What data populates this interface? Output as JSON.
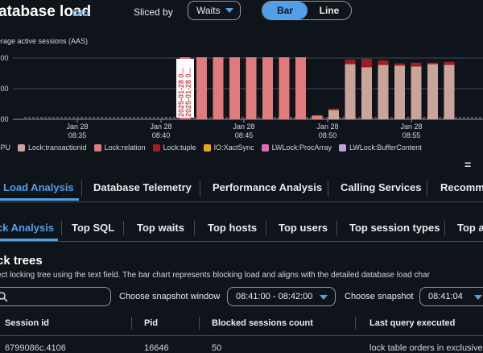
{
  "header": {
    "title": "atabase load",
    "info": "Info",
    "sliced_by_label": "Sliced by",
    "sliced_by_value": "Waits",
    "view_bar": "Bar",
    "view_line": "Line"
  },
  "chart_data": {
    "type": "bar",
    "ylabel": "erage active sessions (AAS)",
    "yticks": [
      ".00",
      ".00",
      ".00"
    ],
    "xticks": [
      {
        "date": "Jan 28",
        "time": "08:35"
      },
      {
        "date": "Jan 28",
        "time": "08:40"
      },
      {
        "date": "Jan 28",
        "time": "08:45"
      },
      {
        "date": "Jan 28",
        "time": "08:50"
      },
      {
        "date": "Jan 28",
        "time": "08:55"
      }
    ],
    "annotation_lines": [
      "2025-01-28 0...",
      "2025-01-28 0..."
    ],
    "series": [
      {
        "name": "CPU",
        "color": "#688ae8"
      },
      {
        "name": "Lock:transactionid",
        "color": "#c8a49a",
        "values": [
          0,
          0,
          0,
          0,
          0,
          0,
          0,
          0,
          0,
          0,
          0,
          0,
          0,
          0,
          0.6,
          3.6,
          3.4,
          3.55,
          3.5,
          3.45,
          3.6,
          3.55
        ]
      },
      {
        "name": "Lock:relation",
        "color": "#e07b7b",
        "values": [
          0,
          0,
          0,
          0,
          0,
          4.05,
          4.05,
          4.05,
          4.05,
          4.05,
          4.05,
          4.05,
          4.05,
          0.25,
          0,
          0,
          0,
          0,
          0,
          0,
          0,
          0
        ]
      },
      {
        "name": "Lock:tuple",
        "color": "#9e1e1e",
        "values": [
          0,
          0,
          0,
          0,
          0,
          0,
          0,
          0,
          0,
          0,
          0,
          0,
          0,
          0,
          0.1,
          0.3,
          0.55,
          0.3,
          0.15,
          0.25,
          0.1,
          0.2
        ]
      },
      {
        "name": "IO:XactSync",
        "color": "#e8a51b"
      },
      {
        "name": "LWLock:ProcArray",
        "color": "#e46ab8"
      },
      {
        "name": "LWLock:BufferContent",
        "color": "#c79bd9"
      }
    ],
    "ylim": [
      0,
      4.3
    ]
  },
  "chart_settings_icon": "=",
  "main_tabs": [
    "Load Analysis",
    "Database Telemetry",
    "Performance Analysis",
    "Calling Services",
    "Recomme"
  ],
  "sub_tabs": [
    "ck Analysis",
    "Top SQL",
    "Top waits",
    "Top hosts",
    "Top users",
    "Top session types",
    "Top a"
  ],
  "section": {
    "title": "ck trees",
    "description": "ect locking tree using the text field. The bar chart represents blocking load and aligns with the detailed database load char",
    "snapshot_window_label": "Choose snapshot window",
    "snapshot_window_value": "08:41:00 - 08:42:00",
    "snapshot_label": "Choose snapshot",
    "snapshot_value": "08:41:04"
  },
  "table": {
    "headers": [
      "Session id",
      "Pid",
      "Blocked sessions count",
      "Last query executed"
    ],
    "rows": [
      [
        "6799086c.4106",
        "16646",
        "50",
        "lock table orders in exclusive"
      ]
    ]
  }
}
